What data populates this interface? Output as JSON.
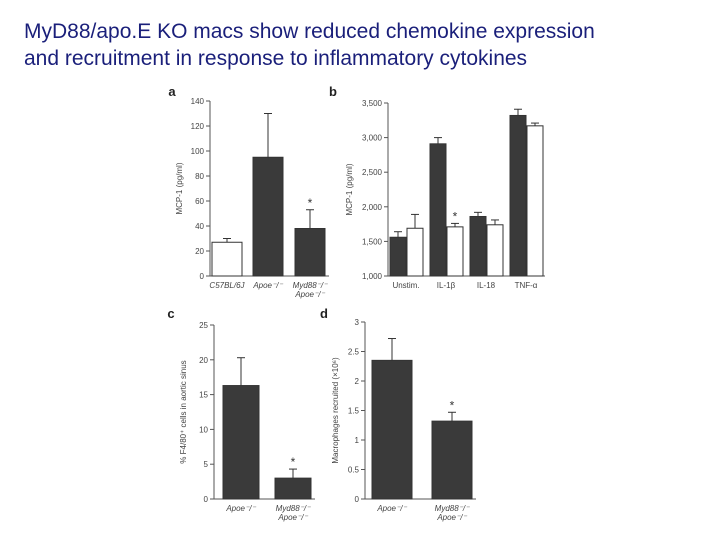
{
  "slide": {
    "title_line1": "MyD88/apo.E KO macs show reduced chemokine expression",
    "title_line2": "and recruitment in response to inflammatory cytokines"
  },
  "colors": {
    "title": "#1a1f7a",
    "bar_dark": "#3a3a3a",
    "bar_light": "#ffffff",
    "axis": "#555555"
  },
  "chart_data": [
    {
      "panel": "a",
      "type": "bar",
      "ylabel": "MCP-1 (pg/ml)",
      "ylim": [
        0,
        140
      ],
      "yticks": [
        0,
        20,
        40,
        60,
        80,
        100,
        120,
        140
      ],
      "ytick_labels": [
        "0",
        "20",
        "40",
        "60",
        "80",
        "100",
        "120",
        "140"
      ],
      "categories": [
        {
          "line1": "C57BL/6J",
          "line2": ""
        },
        {
          "line1": "Apoe⁻/⁻",
          "line2": ""
        },
        {
          "line1": "Myd88⁻/⁻",
          "line2": "Apoe⁻/⁻"
        }
      ],
      "values": [
        27,
        95,
        38
      ],
      "errors": [
        3,
        35,
        15
      ],
      "fills": [
        "light",
        "dark",
        "dark"
      ],
      "significance": [
        "",
        "",
        "*"
      ]
    },
    {
      "panel": "b",
      "type": "bar",
      "ylabel": "MCP-1 (pg/ml)",
      "ylim": [
        1000,
        3500
      ],
      "yticks": [
        1000,
        1500,
        2000,
        2500,
        3000,
        3500
      ],
      "ytick_labels": [
        "1,000",
        "1,500",
        "2,000",
        "2,500",
        "3,000",
        "3,500"
      ],
      "categories": [
        "Unstim.",
        "IL-1β",
        "IL-18",
        "TNF-α"
      ],
      "series": [
        {
          "fill": "dark",
          "values": [
            1560,
            2910,
            1860,
            3320
          ],
          "errors": [
            80,
            90,
            60,
            90
          ],
          "significance": [
            "",
            "",
            "",
            ""
          ]
        },
        {
          "fill": "light",
          "values": [
            1690,
            1710,
            1740,
            3170
          ],
          "errors": [
            200,
            50,
            70,
            40
          ],
          "significance": [
            "",
            "*",
            "",
            ""
          ]
        }
      ]
    },
    {
      "panel": "c",
      "type": "bar",
      "ylabel": "% F4/80⁺ cells in aortic sinus",
      "ylim": [
        0,
        25
      ],
      "yticks": [
        0,
        5,
        10,
        15,
        20,
        25
      ],
      "ytick_labels": [
        "0",
        "5",
        "10",
        "15",
        "20",
        "25"
      ],
      "categories": [
        {
          "line1": "Apoe⁻/⁻",
          "line2": ""
        },
        {
          "line1": "Myd88⁻/⁻",
          "line2": "Apoe⁻/⁻"
        }
      ],
      "values": [
        16.3,
        3.0
      ],
      "errors": [
        4.0,
        1.3
      ],
      "fills": [
        "dark",
        "dark"
      ],
      "significance": [
        "",
        "*"
      ]
    },
    {
      "panel": "d",
      "type": "bar",
      "ylabel": "Macrophages recruited (×10⁶)",
      "ylim": [
        0,
        3
      ],
      "yticks": [
        0,
        0.5,
        1,
        1.5,
        2,
        2.5,
        3
      ],
      "ytick_labels": [
        "0",
        "0.5",
        "1",
        "1.5",
        "2",
        "2.5",
        "3"
      ],
      "categories": [
        {
          "line1": "Apoe⁻/⁻",
          "line2": ""
        },
        {
          "line1": "Myd88⁻/⁻",
          "line2": "Apoe⁻/⁻"
        }
      ],
      "values": [
        2.35,
        1.32
      ],
      "errors": [
        0.37,
        0.15
      ],
      "fills": [
        "dark",
        "dark"
      ],
      "significance": [
        "",
        "*"
      ]
    }
  ]
}
